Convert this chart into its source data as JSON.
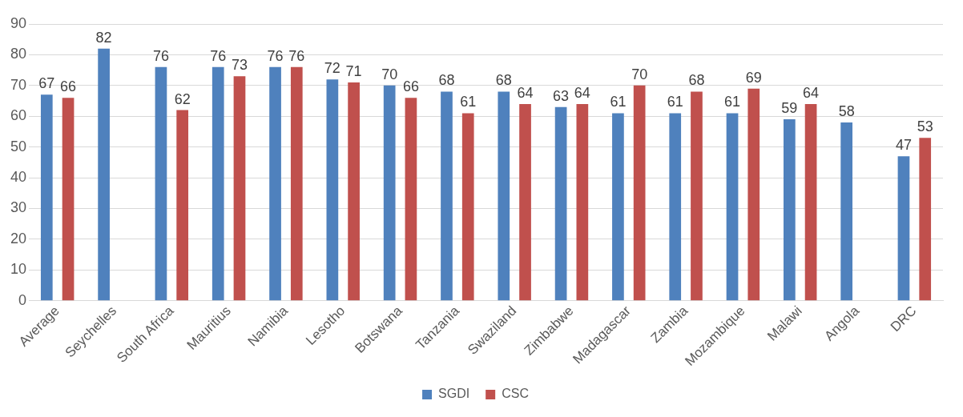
{
  "chart_data": {
    "type": "bar",
    "categories": [
      "Average",
      "Seychelles",
      "South Africa",
      "Mauritius",
      "Namibia",
      "Lesotho",
      "Botswana",
      "Tanzania",
      "Swaziland",
      "Zimbabwe",
      "Madagascar",
      "Zambia",
      "Mozambique",
      "Malawi",
      "Angola",
      "DRC"
    ],
    "series": [
      {
        "name": "SGDI",
        "color": "#4f81bd",
        "values": [
          67,
          82,
          76,
          76,
          76,
          72,
          70,
          68,
          68,
          63,
          61,
          61,
          61,
          59,
          58,
          47
        ]
      },
      {
        "name": "CSC",
        "color": "#c0504d",
        "values": [
          66,
          null,
          62,
          73,
          76,
          71,
          66,
          61,
          64,
          64,
          70,
          68,
          69,
          64,
          null,
          53
        ]
      }
    ],
    "ylim": [
      0,
      90
    ],
    "yticks": [
      0,
      10,
      20,
      30,
      40,
      50,
      60,
      70,
      80,
      90
    ],
    "grid": "y",
    "legend": "bottom",
    "data_labels": true
  }
}
